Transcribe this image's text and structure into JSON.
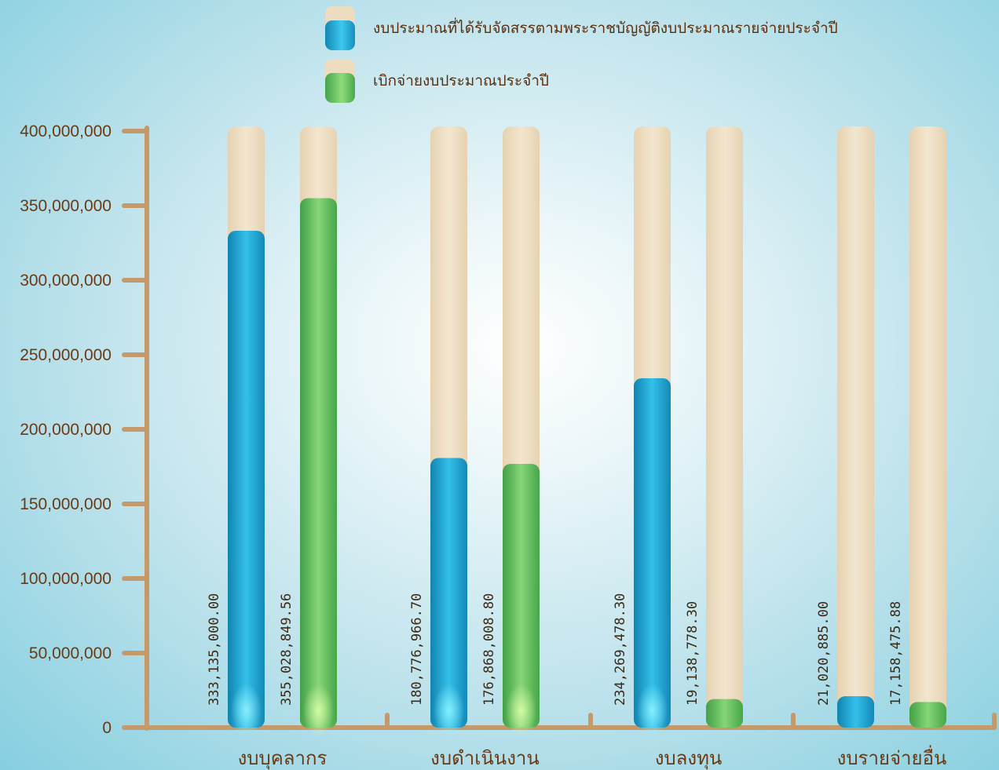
{
  "chart_data": {
    "type": "bar",
    "categories": [
      "งบบุคลากร",
      "งบดำเนินงาน",
      "งบลงทุน",
      "งบรายจ่ายอื่น"
    ],
    "series": [
      {
        "name": "งบประมาณที่ได้รับจัดสรรตามพระราชบัญญัติงบประมาณรายจ่ายประจำปี",
        "values": [
          333135000.0,
          180776966.7,
          234269478.3,
          21020885.0
        ],
        "labels": [
          "333,135,000.00",
          "180,776,966.70",
          "234,269,478.30",
          "21,020,885.00"
        ],
        "color": "#1e9fcc"
      },
      {
        "name": "เบิกจ่ายงบประมาณประจำปี",
        "values": [
          355028849.56,
          176868008.8,
          19138778.3,
          17158475.88
        ],
        "labels": [
          "355,028,849.56",
          "176,868,008.80",
          "19,138,778.30",
          "17,158,475.88"
        ],
        "color": "#5fb85f"
      }
    ],
    "ylim": [
      0,
      400000000
    ],
    "yticks": [
      0,
      50000000,
      100000000,
      150000000,
      200000000,
      250000000,
      300000000,
      350000000,
      400000000
    ],
    "ytick_labels": [
      "0",
      "50,000,000",
      "100,000,000",
      "150,000,000",
      "200,000,000",
      "250,000,000",
      "300,000,000",
      "350,000,000",
      "400,000,000"
    ],
    "legend_position": "top-center",
    "grid": false,
    "track_color": "#eddcc0",
    "axis_color": "#c49a6c"
  }
}
